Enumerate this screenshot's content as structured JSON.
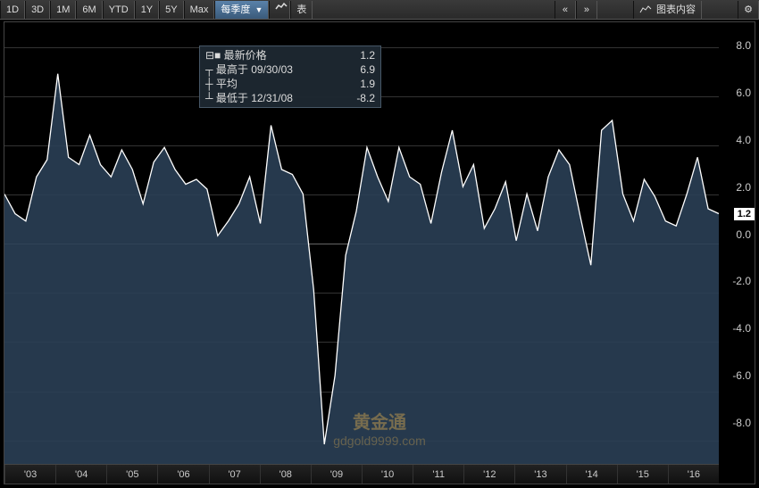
{
  "toolbar": {
    "ranges": [
      "1D",
      "3D",
      "1M",
      "6M",
      "YTD",
      "1Y",
      "5Y",
      "Max"
    ],
    "period": "每季度",
    "table": "表",
    "chart_content": "图表内容"
  },
  "info": {
    "last_label": "最新价格",
    "last_value": "1.2",
    "high_label": "最高于",
    "high_date": "09/30/03",
    "high_value": "6.9",
    "avg_label": "平均",
    "avg_value": "1.9",
    "low_label": "最低于",
    "low_date": "12/31/08",
    "low_value": "-8.2"
  },
  "watermark": {
    "line1": "黄金通",
    "line2": "gdgold9999.com"
  },
  "chart": {
    "type": "area",
    "ylim": [
      -9,
      9
    ],
    "yticks": [
      -8.0,
      -6.0,
      -4.0,
      -2.0,
      0.0,
      2.0,
      4.0,
      6.0,
      8.0
    ],
    "x_labels": [
      "'03",
      "'04",
      "'05",
      "'06",
      "'07",
      "'08",
      "'09",
      "'10",
      "'11",
      "'12",
      "'13",
      "'14",
      "'15",
      "'16"
    ],
    "last_value": 1.2,
    "line_color": "#ffffff",
    "fill_color": "#2a3f55",
    "grid_color": "#333333",
    "background_color": "#000000",
    "zero_line_color": "#666666",
    "line_width": 1.3,
    "values": [
      2.0,
      1.2,
      0.9,
      2.7,
      3.4,
      6.9,
      3.5,
      3.2,
      4.4,
      3.2,
      2.7,
      3.8,
      3.0,
      1.6,
      3.3,
      3.9,
      3.0,
      2.4,
      2.6,
      2.2,
      0.3,
      0.9,
      1.6,
      2.7,
      0.8,
      4.8,
      3.0,
      2.8,
      2.0,
      -1.9,
      -8.2,
      -5.4,
      -0.5,
      1.3,
      3.9,
      2.7,
      1.7,
      3.9,
      2.7,
      2.4,
      0.8,
      2.9,
      4.6,
      2.3,
      3.2,
      0.6,
      1.4,
      2.5,
      0.1,
      2.0,
      0.5,
      2.7,
      3.8,
      3.2,
      1.1,
      -0.9,
      4.6,
      5.0,
      2.0,
      0.9,
      2.6,
      1.9,
      0.9,
      0.7,
      2.0,
      3.5,
      1.4,
      1.2
    ]
  }
}
